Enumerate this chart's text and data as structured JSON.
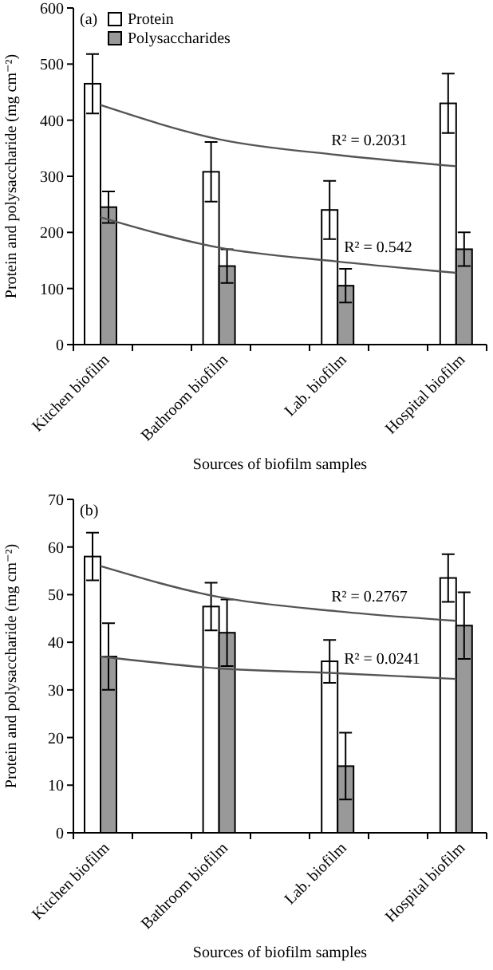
{
  "chart_data": [
    {
      "type": "bar",
      "xlabel": "Sources of biofilm samples",
      "ylabel": "Protein and polysaccharide (mg cm⁻²)",
      "categories": [
        "Kitchen biofilm",
        "Bathroom biofilm",
        "Lab. biofilm",
        "Hospital biofilm"
      ],
      "ylim": [
        0,
        600
      ],
      "yticks": [
        0,
        100,
        200,
        300,
        400,
        500,
        600
      ],
      "legend": "top left",
      "grid": false,
      "series": [
        {
          "name": "Protein",
          "color": "#ffffff",
          "values": [
            465,
            308,
            240,
            430
          ],
          "errors": [
            53,
            53,
            52,
            53
          ]
        },
        {
          "name": "Polysaccharides",
          "color": "#999999",
          "values": [
            245,
            140,
            105,
            170
          ],
          "errors": [
            28,
            30,
            30,
            30
          ]
        },
        {
          "type": "line",
          "color": "#555555",
          "values": [
            427,
            366,
            338,
            318
          ]
        },
        {
          "type": "line",
          "color": "#555555",
          "values": [
            227,
            173,
            148,
            128
          ]
        }
      ],
      "annotations": [
        "(a)",
        "R² = 0.2031",
        "R² = 0.542"
      ]
    },
    {
      "type": "bar",
      "xlabel": "Sources of biofilm samples",
      "ylabel": "Protein and polysaccharide (mg cm⁻²)",
      "categories": [
        "Kitchen biofilm",
        "Bathroom biofilm",
        "Lab. biofilm",
        "Hospital biofilm"
      ],
      "ylim": [
        0,
        70
      ],
      "yticks": [
        0,
        10,
        20,
        30,
        40,
        50,
        60,
        70
      ],
      "grid": false,
      "series": [
        {
          "color": "#ffffff",
          "values": [
            58,
            47.5,
            36,
            53.5
          ],
          "errors": [
            5,
            5,
            4.5,
            5
          ]
        },
        {
          "color": "#999999",
          "values": [
            37,
            42,
            14,
            43.5
          ],
          "errors": [
            7,
            7,
            7,
            7
          ]
        },
        {
          "type": "line",
          "color": "#555555",
          "values": [
            56,
            49.5,
            46.5,
            44.5
          ]
        },
        {
          "type": "line",
          "color": "#555555",
          "values": [
            37,
            34.5,
            33.5,
            32.3
          ]
        }
      ],
      "annotations": [
        "(b)",
        "R² = 0.2767",
        "R² = 0.0241"
      ]
    }
  ]
}
